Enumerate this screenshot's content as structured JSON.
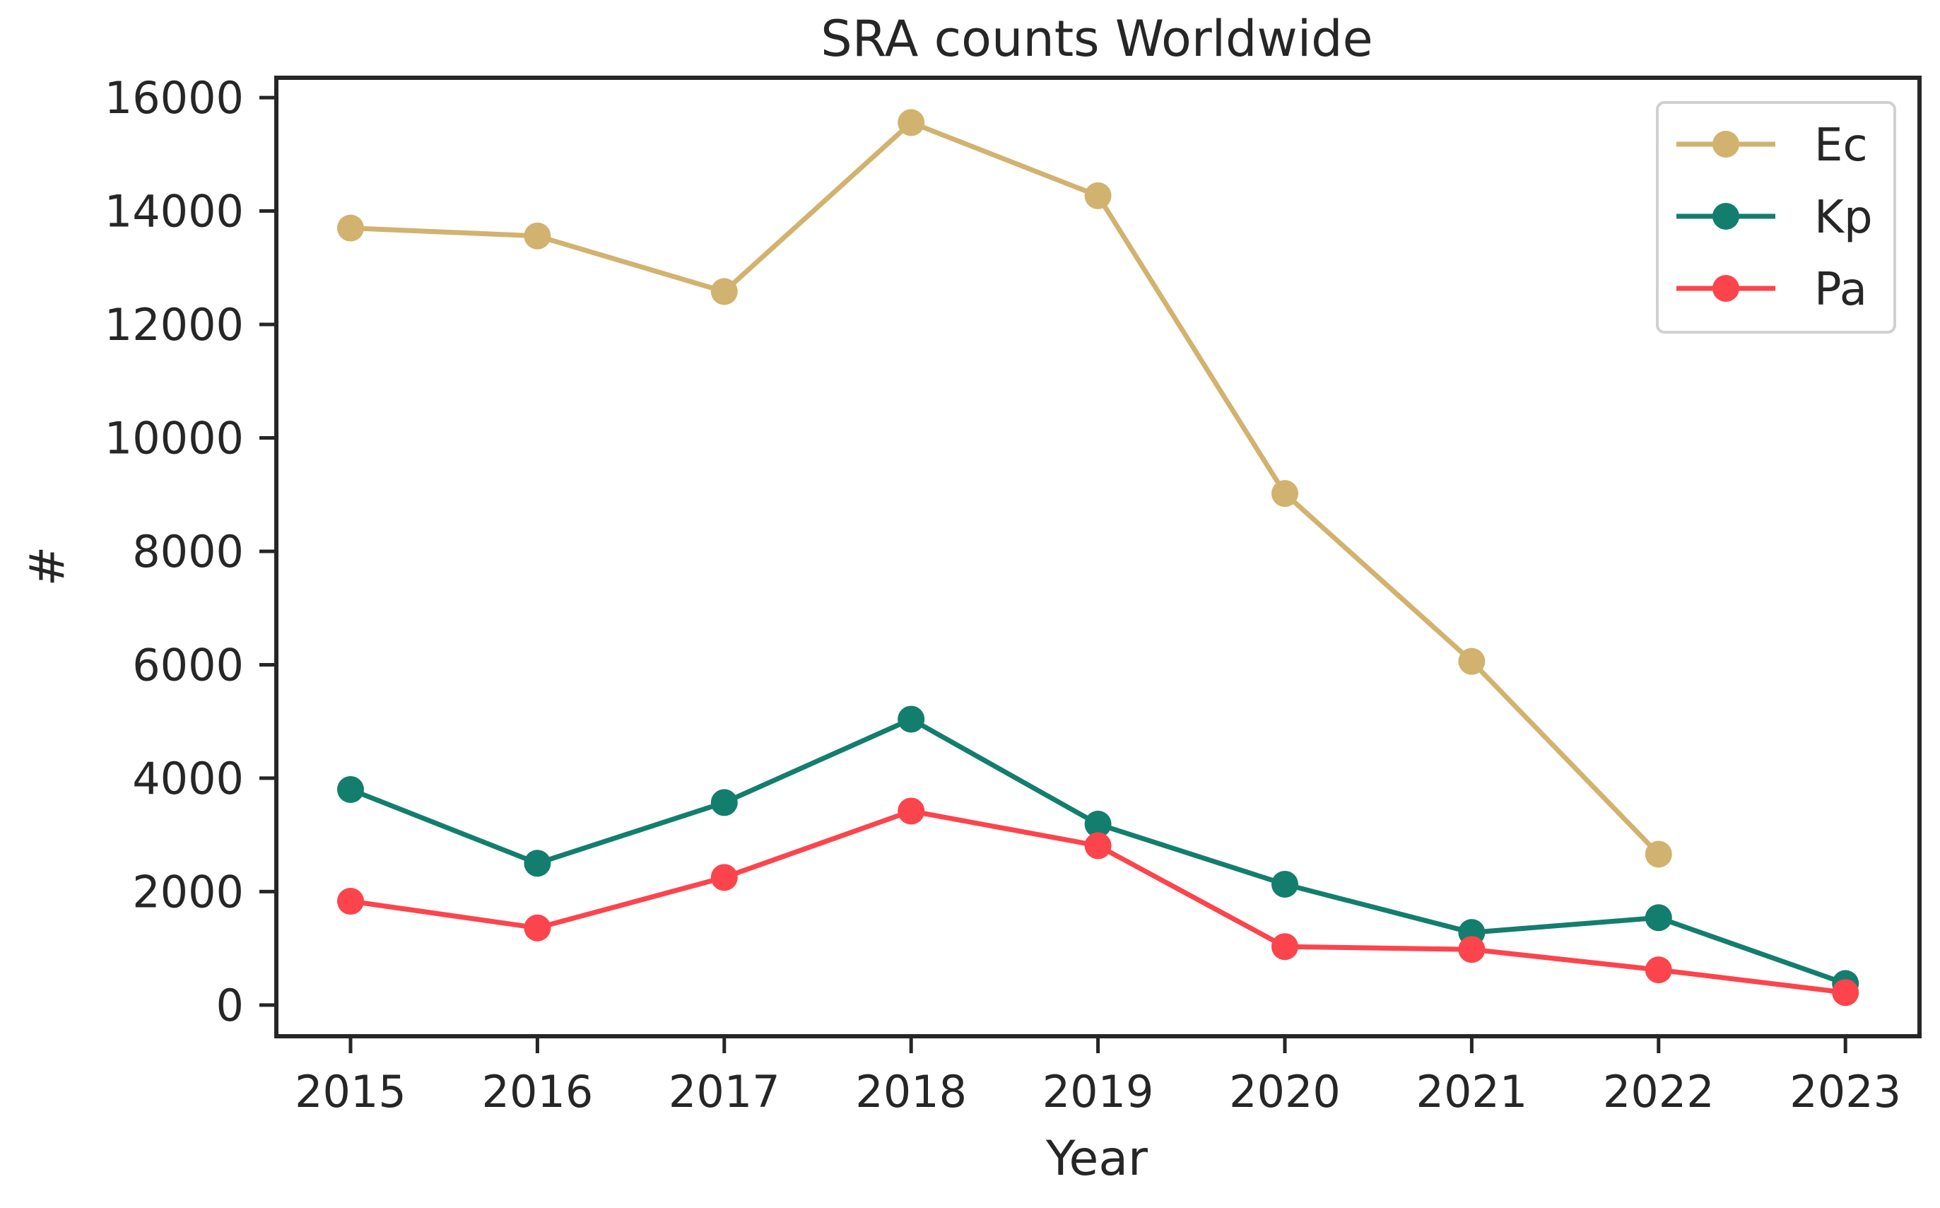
{
  "chart_data": {
    "type": "line",
    "title": "SRA counts Worldwide",
    "xlabel": "Year",
    "ylabel": "#",
    "x": [
      "2015",
      "2016",
      "2017",
      "2018",
      "2019",
      "2020",
      "2021",
      "2022",
      "2023"
    ],
    "y_ticks": [
      "0",
      "2000",
      "4000",
      "6000",
      "8000",
      "10000",
      "12000",
      "14000",
      "16000"
    ],
    "ylim": [
      -550,
      16350
    ],
    "grid": false,
    "legend_position": "top-right",
    "series": [
      {
        "name": "Ec",
        "color": "#d1b26f",
        "values": [
          13700,
          13560,
          12580,
          15560,
          14270,
          9020,
          6060,
          2660,
          null
        ]
      },
      {
        "name": "Kp",
        "color": "#137e6d",
        "values": [
          3800,
          2500,
          3570,
          5040,
          3190,
          2130,
          1280,
          1540,
          380
        ]
      },
      {
        "name": "Pa",
        "color": "#fc444c",
        "values": [
          1830,
          1360,
          2250,
          3420,
          2810,
          1030,
          980,
          620,
          220
        ]
      }
    ]
  }
}
